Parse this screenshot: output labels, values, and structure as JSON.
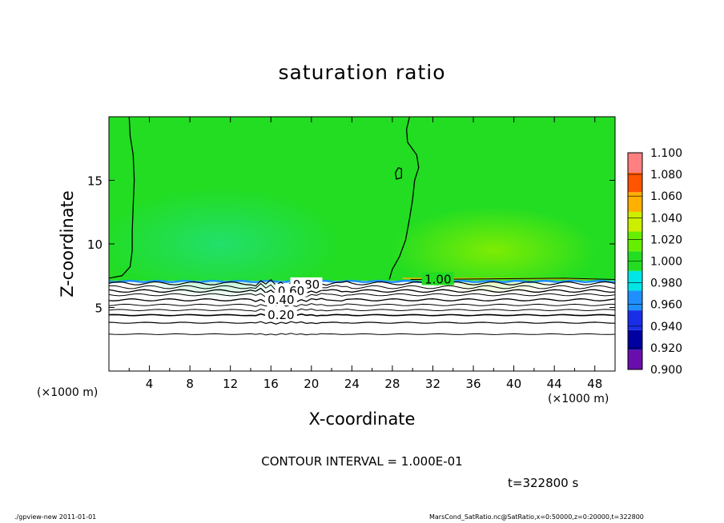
{
  "chart_data": {
    "type": "heatmap",
    "title": "saturation ratio",
    "xlabel": "X-coordinate",
    "ylabel": "Z-coordinate",
    "x_unit_left": "(×1000 m)",
    "x_unit_right": "(×1000 m)",
    "xlim": [
      0,
      50
    ],
    "ylim": [
      0,
      20
    ],
    "x_ticks": [
      4,
      8,
      12,
      16,
      20,
      24,
      28,
      32,
      36,
      40,
      44,
      48
    ],
    "y_ticks": [
      5,
      10,
      15
    ],
    "colorbar": {
      "levels": [
        0.9,
        0.92,
        0.94,
        0.96,
        0.98,
        1.0,
        1.02,
        1.04,
        1.06,
        1.08,
        1.1
      ],
      "labels": [
        "0.900",
        "0.920",
        "0.940",
        "0.960",
        "0.980",
        "1.000",
        "1.020",
        "1.040",
        "1.060",
        "1.080",
        "1.100"
      ],
      "colors": [
        "#6a0dad",
        "#0000a0",
        "#1a2ee8",
        "#1f8fff",
        "#00e6e6",
        "#22dd22",
        "#66ee00",
        "#ccee00",
        "#ffb000",
        "#ff5500",
        "#ff8080"
      ]
    },
    "contour_labels": [
      {
        "text": "1.00",
        "x": 32.5,
        "z": 7.2
      },
      {
        "text": "0.80",
        "x": 19.5,
        "z": 6.8
      },
      {
        "text": "0.60",
        "x": 18.0,
        "z": 6.3
      },
      {
        "text": "0.40",
        "x": 17.0,
        "z": 5.6
      },
      {
        "text": "0.20",
        "x": 17.0,
        "z": 4.4
      }
    ],
    "contour_interval_text": "CONTOUR INTERVAL = 1.000E-01",
    "time_text": "t=322800  s"
  },
  "footer": {
    "left": "./gpview-new   2011-01-01",
    "right": "MarsCond_SatRatio.nc@SatRatio,x=0:50000,z=0:20000,t=322800"
  }
}
